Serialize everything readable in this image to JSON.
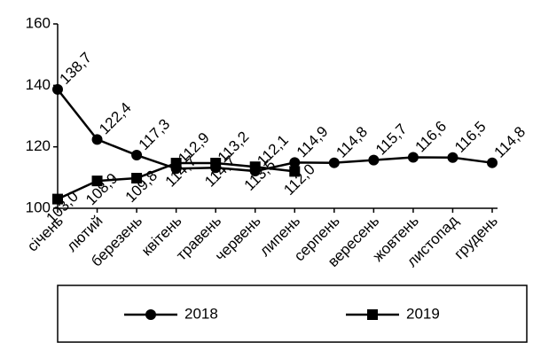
{
  "chart_data": {
    "type": "line",
    "categories": [
      "січень",
      "лютий",
      "березень",
      "квітень",
      "травень",
      "червень",
      "липень",
      "серпень",
      "вересень",
      "жовтень",
      "листопад",
      "грудень"
    ],
    "series": [
      {
        "name": "2018",
        "color": "#000000",
        "marker": "circle",
        "values": [
          138.7,
          122.4,
          117.3,
          112.9,
          113.2,
          112.1,
          114.9,
          114.8,
          115.7,
          116.6,
          116.5,
          114.8
        ],
        "value_labels": [
          "138,7",
          "122,4",
          "117,3",
          "112,9",
          "113,2",
          "112,1",
          "114,9",
          "114,8",
          "115,7",
          "116,6",
          "116,5",
          "114,8"
        ]
      },
      {
        "name": "2019",
        "color": "#000000",
        "marker": "square",
        "values": [
          103.0,
          108.9,
          109.8,
          114.7,
          114.7,
          113.5,
          112.0,
          null,
          null,
          null,
          null,
          null
        ],
        "value_labels": [
          "103,0",
          "108,9",
          "109,8",
          "114,7",
          "114,7",
          "113,5",
          "112,0",
          null,
          null,
          null,
          null,
          null
        ]
      }
    ],
    "ylim": [
      100,
      160
    ],
    "yticks": [
      100,
      120,
      140,
      160
    ],
    "grid": false,
    "legend": "bottom"
  }
}
